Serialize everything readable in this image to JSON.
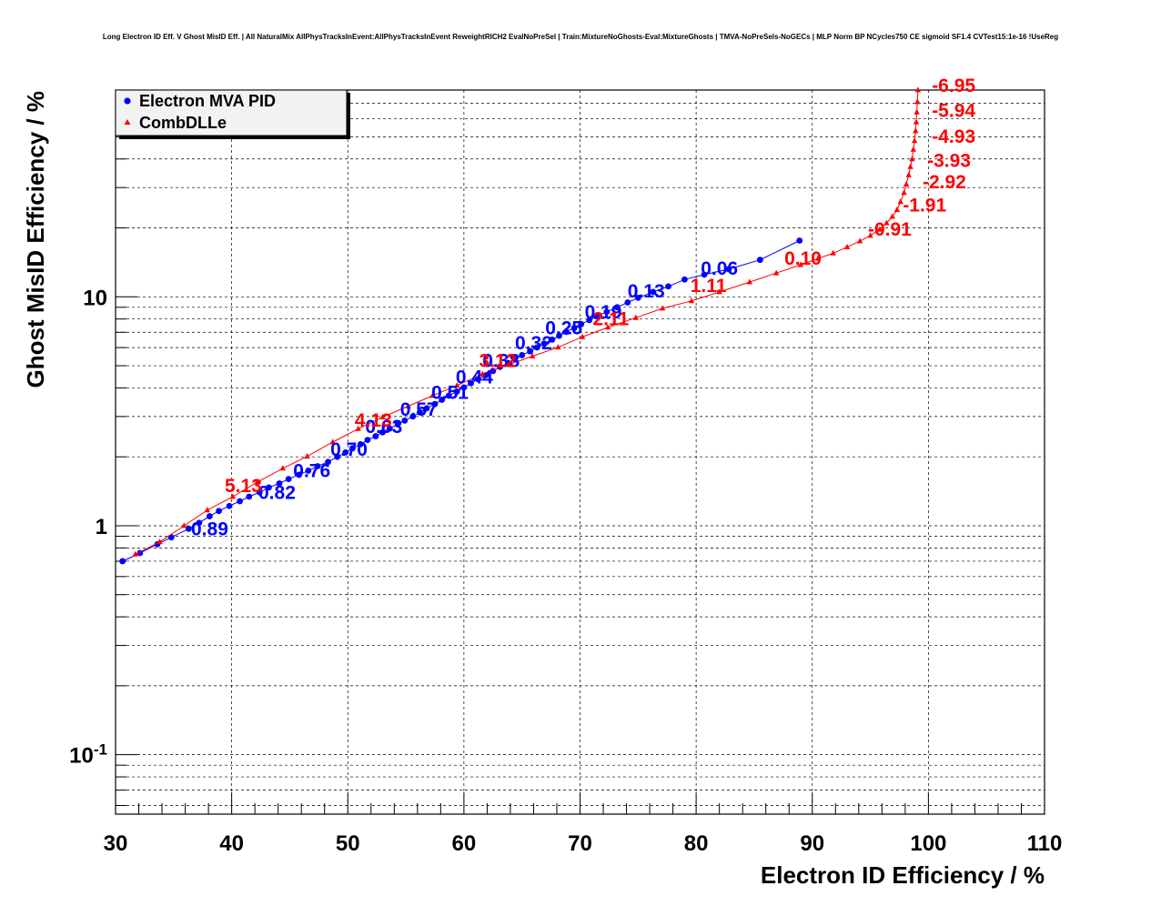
{
  "chart_data": {
    "type": "line",
    "title": "Long Electron ID Eff. V Ghost MisID Eff. | All NaturalMix AllPhysTracksInEvent:AllPhysTracksInEvent ReweightRICH2 EvalNoPreSel | Train:MixtureNoGhosts-Eval:MixtureGhosts | TMVA-NoPreSels-NoGECs | MLP Norm BP NCycles750 CE sigmoid SF1.4 CVTest15:1e-16 !UseReg",
    "xlabel": "Electron ID Efficiency / %",
    "ylabel": "Ghost MisID Efficiency / %",
    "xlim": [
      30,
      110
    ],
    "ylim": [
      0.055,
      80
    ],
    "yscale": "log",
    "grid": true,
    "legend_position": "top-left",
    "x_ticks": [
      {
        "value": 30,
        "label": "30"
      },
      {
        "value": 40,
        "label": "40"
      },
      {
        "value": 50,
        "label": "50"
      },
      {
        "value": 60,
        "label": "60"
      },
      {
        "value": 70,
        "label": "70"
      },
      {
        "value": 80,
        "label": "80"
      },
      {
        "value": 90,
        "label": "90"
      },
      {
        "value": 100,
        "label": "100"
      },
      {
        "value": 110,
        "label": "110"
      }
    ],
    "y_ticks": [
      {
        "value": 0.1,
        "base": "10",
        "exp": "-1"
      },
      {
        "value": 1,
        "base": "1",
        "exp": ""
      },
      {
        "value": 10,
        "base": "10",
        "exp": ""
      }
    ],
    "series": [
      {
        "name": "Electron MVA PID",
        "color": "#0000ff",
        "marker": "circle",
        "x": [
          30.6,
          32.1,
          33.6,
          34.8,
          36.3,
          37.2,
          38.1,
          38.9,
          39.8,
          40.7,
          41.5,
          42.4,
          43.2,
          44.1,
          44.9,
          45.8,
          46.6,
          47.4,
          48.3,
          49.1,
          49.8,
          50.4,
          51.1,
          51.7,
          52.4,
          53.0,
          53.6,
          54.3,
          54.9,
          55.6,
          56.2,
          56.8,
          57.5,
          58.1,
          58.7,
          59.4,
          60.0,
          60.6,
          61.2,
          61.9,
          62.5,
          63.1,
          63.8,
          64.4,
          65.0,
          65.7,
          66.3,
          66.9,
          67.6,
          68.2,
          68.8,
          69.5,
          70.1,
          70.8,
          71.4,
          72.3,
          73.2,
          74.1,
          75.0,
          76.3,
          77.6,
          79.0,
          80.7,
          82.8,
          85.5,
          88.9
        ],
        "y": [
          0.7,
          0.76,
          0.83,
          0.89,
          0.97,
          1.03,
          1.1,
          1.16,
          1.22,
          1.28,
          1.34,
          1.4,
          1.47,
          1.53,
          1.6,
          1.67,
          1.74,
          1.82,
          1.9,
          2.0,
          2.09,
          2.18,
          2.27,
          2.37,
          2.46,
          2.56,
          2.66,
          2.77,
          2.88,
          3.0,
          3.13,
          3.26,
          3.4,
          3.55,
          3.7,
          3.86,
          4.02,
          4.19,
          4.37,
          4.55,
          4.74,
          4.94,
          5.14,
          5.35,
          5.56,
          5.78,
          6.01,
          6.25,
          6.5,
          6.76,
          7.03,
          7.31,
          7.6,
          7.91,
          8.22,
          8.6,
          9.0,
          9.45,
          9.9,
          10.5,
          11.1,
          11.9,
          12.5,
          13.2,
          14.5,
          17.6
        ]
      },
      {
        "name": "CombDLLe",
        "color": "#ff0000",
        "marker": "triangle",
        "x": [
          31.7,
          33.8,
          35.9,
          37.9,
          40.1,
          42.2,
          44.4,
          46.5,
          48.7,
          50.9,
          53.0,
          55.2,
          57.3,
          59.4,
          61.6,
          63.8,
          65.9,
          68.1,
          70.2,
          72.4,
          74.8,
          77.1,
          79.6,
          82.0,
          84.6,
          86.9,
          89.0,
          90.5,
          91.8,
          93.0,
          94.1,
          95.0,
          95.8,
          96.4,
          96.9,
          97.3,
          97.6,
          97.9,
          98.1,
          98.3,
          98.45,
          98.6,
          98.7,
          98.8,
          98.9,
          98.95,
          99.0,
          99.05,
          99.1
        ],
        "y": [
          0.75,
          0.85,
          1.0,
          1.17,
          1.34,
          1.55,
          1.78,
          2.01,
          2.32,
          2.65,
          2.98,
          3.33,
          3.7,
          4.1,
          4.6,
          5.05,
          5.5,
          6.02,
          6.68,
          7.35,
          8.1,
          8.9,
          9.6,
          10.5,
          11.6,
          12.7,
          13.8,
          14.7,
          15.5,
          16.5,
          17.5,
          18.5,
          19.7,
          21.0,
          22.4,
          24.0,
          26.0,
          28.5,
          31.0,
          34.0,
          37.0,
          40.0,
          44.0,
          48.0,
          53.0,
          58.0,
          64.0,
          71.0,
          80.0
        ]
      }
    ],
    "annotations": [
      {
        "series": "Electron MVA PID",
        "text": "0.89",
        "x": 36.5,
        "y": 0.91
      },
      {
        "series": "Electron MVA PID",
        "text": "0.82",
        "x": 42.3,
        "y": 1.31
      },
      {
        "series": "Electron MVA PID",
        "text": "0.76",
        "x": 45.3,
        "y": 1.63
      },
      {
        "series": "Electron MVA PID",
        "text": "0.70",
        "x": 48.5,
        "y": 2.02
      },
      {
        "series": "Electron MVA PID",
        "text": "0.63",
        "x": 51.5,
        "y": 2.54
      },
      {
        "series": "Electron MVA PID",
        "text": "0.57",
        "x": 54.5,
        "y": 3.03
      },
      {
        "series": "Electron MVA PID",
        "text": "0.51",
        "x": 57.2,
        "y": 3.58
      },
      {
        "series": "Electron MVA PID",
        "text": "0.44",
        "x": 59.3,
        "y": 4.18
      },
      {
        "series": "Electron MVA PID",
        "text": "0.38",
        "x": 61.6,
        "y": 4.93
      },
      {
        "series": "Electron MVA PID",
        "text": "0.32",
        "x": 64.4,
        "y": 5.89
      },
      {
        "series": "Electron MVA PID",
        "text": "0.25",
        "x": 67.0,
        "y": 6.87
      },
      {
        "series": "Electron MVA PID",
        "text": "0.19",
        "x": 70.4,
        "y": 8.04
      },
      {
        "series": "Electron MVA PID",
        "text": "0.13",
        "x": 74.1,
        "y": 9.93
      },
      {
        "series": "Electron MVA PID",
        "text": "0.06",
        "x": 80.4,
        "y": 12.5
      },
      {
        "series": "CombDLLe",
        "text": "-6.95",
        "x": 100.3,
        "y": 78.5
      },
      {
        "series": "CombDLLe",
        "text": "-5.94",
        "x": 100.3,
        "y": 61.0
      },
      {
        "series": "CombDLLe",
        "text": "-4.93",
        "x": 100.3,
        "y": 47.0
      },
      {
        "series": "CombDLLe",
        "text": "-3.93",
        "x": 99.9,
        "y": 37.0
      },
      {
        "series": "CombDLLe",
        "text": "-2.92",
        "x": 99.5,
        "y": 29.8
      },
      {
        "series": "CombDLLe",
        "text": "-1.91",
        "x": 97.8,
        "y": 23.6
      },
      {
        "series": "CombDLLe",
        "text": "-0.91",
        "x": 94.8,
        "y": 18.5
      },
      {
        "series": "CombDLLe",
        "text": "0.10",
        "x": 87.6,
        "y": 13.8
      },
      {
        "series": "CombDLLe",
        "text": "1.11",
        "x": 79.5,
        "y": 10.5
      },
      {
        "series": "CombDLLe",
        "text": "2.11",
        "x": 71.1,
        "y": 7.5
      },
      {
        "series": "CombDLLe",
        "text": "3.12",
        "x": 61.3,
        "y": 4.93
      },
      {
        "series": "CombDLLe",
        "text": "4.13",
        "x": 50.6,
        "y": 2.71
      },
      {
        "series": "CombDLLe",
        "text": "5.13",
        "x": 39.4,
        "y": 1.4
      }
    ]
  }
}
